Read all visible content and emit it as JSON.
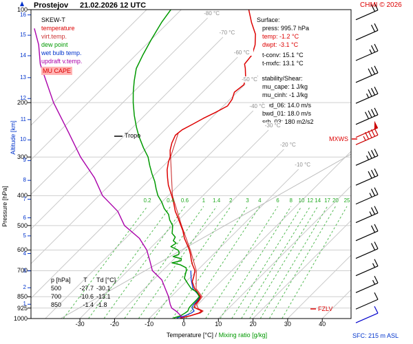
{
  "header": {
    "station": "Prostejov",
    "datetime": "21.02.2026 12 UTC",
    "copyright": "CHMI © 2026"
  },
  "legend": {
    "title": "SKEW-T",
    "items": [
      {
        "label": "temperature",
        "color": "#dd0000"
      },
      {
        "label": "virt.temp.",
        "color": "#cc3333"
      },
      {
        "label": "dew point",
        "color": "#009900"
      },
      {
        "label": "wet bulb temp.",
        "color": "#0033cc"
      },
      {
        "label": "updraft v.temp.",
        "color": "#aa00aa"
      },
      {
        "label": "MU CAPE",
        "color": "#dd0000",
        "highlight": "#ffb3b3"
      }
    ]
  },
  "panels": {
    "surface": {
      "title": "Surface:",
      "lines": [
        "press: 995.7 hPa",
        "temp: -1.2 °C",
        "dwpt: -3.1 °C",
        "t-conv: 15.1 °C",
        "t-mxfc: 13.1 °C"
      ]
    },
    "instability": {
      "title": "Instability/Shear:",
      "lines": [
        "mu_cape: 1 J/kg",
        "mu_cinh: -1 J/kg",
        "bwd_06: 14.0 m/s",
        "bwd_01: 18.0 m/s",
        "srh_03: 180 m2/s2"
      ]
    }
  },
  "table": {
    "header": {
      "p": "p [hPa]",
      "t": "T",
      "td": "Td [°C]"
    },
    "rows": [
      {
        "p": "500",
        "t": "-27.7",
        "td": "-30.1"
      },
      {
        "p": "700",
        "t": "-10.6",
        "td": "-13.1"
      },
      {
        "p": "850",
        "t": "-1.4",
        "td": "-1.8"
      }
    ]
  },
  "annotations": {
    "tropo": "Tropo",
    "mxws": "MXWS",
    "fzlv": "FZLV",
    "sfc": "SFC: 215 m ASL"
  },
  "axes": {
    "pressure_label": "Pressure [hPa]",
    "altitude_label": "Altitude [km]",
    "temp_axis_label": "Temperature [°C]",
    "separator": "/",
    "mixing_axis_label": "Mixing ratio [g/kg]",
    "altitude_ticks": [
      {
        "km": 1,
        "p": 899
      },
      {
        "km": 2,
        "p": 795
      },
      {
        "km": 3,
        "p": 701
      },
      {
        "km": 4,
        "p": 616
      },
      {
        "km": 5,
        "p": 540
      },
      {
        "km": 6,
        "p": 472
      },
      {
        "km": 7,
        "p": 411
      },
      {
        "km": 8,
        "p": 357
      },
      {
        "km": 9,
        "p": 308
      },
      {
        "km": 10,
        "p": 264
      },
      {
        "km": 11,
        "p": 227
      },
      {
        "km": 12,
        "p": 194
      },
      {
        "km": 13,
        "p": 166
      },
      {
        "km": 14,
        "p": 141
      },
      {
        "km": 15,
        "p": 121
      },
      {
        "km": 16,
        "p": 104
      }
    ],
    "isotherm_labels": [
      {
        "t": -10,
        "y": 240,
        "label": "-10 °C"
      },
      {
        "t": -20,
        "y": 211,
        "label": "-20 °C"
      },
      {
        "t": -30,
        "y": 183,
        "label": "-30 °C"
      },
      {
        "t": -40,
        "y": 155,
        "label": "-40 °C"
      },
      {
        "t": -50,
        "y": 116,
        "label": "-50 °C"
      },
      {
        "t": -60,
        "y": 77,
        "label": "-60 °C"
      },
      {
        "t": -70,
        "y": 48,
        "label": "-70 °C"
      },
      {
        "t": -80,
        "y": 20,
        "label": "-80 °C"
      }
    ]
  },
  "chart_data": {
    "type": "line",
    "title": "SKEW-T sounding, Prostejov, 21.02.2026 12 UTC",
    "x_axis": {
      "label": "Temperature [°C]",
      "ticks": [
        -30,
        -20,
        -10,
        0,
        10,
        20,
        30,
        40
      ],
      "skew_deg": 45
    },
    "y_axis": {
      "label": "Pressure [hPa]",
      "scale": "log",
      "range": [
        100,
        1000
      ],
      "ticks": [
        100,
        200,
        300,
        400,
        500,
        600,
        700,
        850,
        925,
        1000
      ]
    },
    "mixing_ratio_lines": [
      0.2,
      0.4,
      0.6,
      1,
      1.4,
      2,
      3,
      4,
      6,
      8,
      10,
      12,
      14,
      17,
      20,
      25
    ],
    "series": [
      {
        "name": "wet bulb temp.",
        "color": "#0033cc",
        "width": 1.2,
        "points": [
          [
            996,
            -2.2
          ],
          [
            980,
            -0.5
          ],
          [
            960,
            0.6
          ],
          [
            945,
            0.8
          ],
          [
            930,
            -0.3
          ],
          [
            920,
            -0.9
          ],
          [
            900,
            -1.2
          ],
          [
            870,
            -1.3
          ],
          [
            850,
            -1.6
          ],
          [
            800,
            -6.0
          ],
          [
            750,
            -9.0
          ],
          [
            700,
            -11.8
          ]
        ]
      },
      {
        "name": "virt.temp.",
        "color": "#cc3333",
        "width": 1.1,
        "points": [
          [
            996,
            -0.8
          ],
          [
            960,
            3.2
          ],
          [
            945,
            3.4
          ],
          [
            930,
            1.4
          ],
          [
            900,
            -0.4
          ],
          [
            850,
            -1.0
          ],
          [
            800,
            -5.1
          ],
          [
            700,
            -10.2
          ],
          [
            600,
            -17.9
          ],
          [
            500,
            -27.5
          ],
          [
            400,
            -38.8
          ],
          [
            300,
            -50.5
          ],
          [
            250,
            -55.3
          ]
        ]
      },
      {
        "name": "temperature",
        "color": "#dd0000",
        "width": 1.5,
        "points": [
          [
            996,
            -1.2
          ],
          [
            980,
            1.0
          ],
          [
            960,
            2.8
          ],
          [
            945,
            3.0
          ],
          [
            930,
            1.0
          ],
          [
            920,
            -0.2
          ],
          [
            900,
            -0.8
          ],
          [
            870,
            -1.0
          ],
          [
            850,
            -1.4
          ],
          [
            800,
            -5.5
          ],
          [
            760,
            -8.2
          ],
          [
            730,
            -9.3
          ],
          [
            700,
            -10.6
          ],
          [
            670,
            -13.0
          ],
          [
            650,
            -14.5
          ],
          [
            620,
            -16.6
          ],
          [
            600,
            -18.2
          ],
          [
            570,
            -21.0
          ],
          [
            550,
            -23.0
          ],
          [
            520,
            -25.6
          ],
          [
            500,
            -27.7
          ],
          [
            470,
            -31.0
          ],
          [
            450,
            -33.4
          ],
          [
            420,
            -36.6
          ],
          [
            400,
            -39.0
          ],
          [
            370,
            -43.0
          ],
          [
            350,
            -45.4
          ],
          [
            330,
            -47.8
          ],
          [
            310,
            -49.8
          ],
          [
            300,
            -50.6
          ],
          [
            285,
            -52.6
          ],
          [
            270,
            -54.2
          ],
          [
            255,
            -55.4
          ],
          [
            245,
            -55.0
          ],
          [
            235,
            -53.6
          ],
          [
            225,
            -52.2
          ],
          [
            215,
            -50.4
          ],
          [
            205,
            -48.8
          ],
          [
            195,
            -49.4
          ],
          [
            185,
            -50.8
          ],
          [
            175,
            -50.2
          ],
          [
            165,
            -52.0
          ],
          [
            155,
            -54.5
          ],
          [
            150,
            -56.0
          ],
          [
            140,
            -56.5
          ],
          [
            130,
            -58.5
          ],
          [
            120,
            -61.5
          ],
          [
            110,
            -66.0
          ],
          [
            100,
            -70.5
          ]
        ]
      },
      {
        "name": "dew point",
        "color": "#009900",
        "width": 1.5,
        "points": [
          [
            996,
            -3.1
          ],
          [
            980,
            -1.8
          ],
          [
            960,
            -1.2
          ],
          [
            945,
            -1.0
          ],
          [
            930,
            -1.4
          ],
          [
            920,
            -1.6
          ],
          [
            900,
            -1.7
          ],
          [
            870,
            -1.7
          ],
          [
            850,
            -1.8
          ],
          [
            820,
            -4.0
          ],
          [
            800,
            -6.5
          ],
          [
            770,
            -9.0
          ],
          [
            740,
            -11.5
          ],
          [
            700,
            -13.1
          ],
          [
            685,
            -14.0
          ],
          [
            670,
            -16.5
          ],
          [
            660,
            -19.5
          ],
          [
            650,
            -17.5
          ],
          [
            640,
            -18.0
          ],
          [
            630,
            -21.0
          ],
          [
            620,
            -20.0
          ],
          [
            610,
            -20.5
          ],
          [
            600,
            -21.5
          ],
          [
            585,
            -24.5
          ],
          [
            570,
            -24.0
          ],
          [
            560,
            -25.5
          ],
          [
            545,
            -26.0
          ],
          [
            530,
            -28.0
          ],
          [
            515,
            -29.0
          ],
          [
            500,
            -30.1
          ],
          [
            480,
            -32.5
          ],
          [
            460,
            -34.5
          ],
          [
            440,
            -37.5
          ],
          [
            420,
            -40.0
          ],
          [
            400,
            -43.0
          ],
          [
            380,
            -45.5
          ],
          [
            360,
            -48.0
          ],
          [
            340,
            -51.0
          ],
          [
            320,
            -54.0
          ],
          [
            300,
            -57.0
          ],
          [
            280,
            -61.0
          ],
          [
            260,
            -65.0
          ],
          [
            250,
            -67.0
          ],
          [
            240,
            -69.0
          ],
          [
            220,
            -73.0
          ],
          [
            200,
            -77.0
          ],
          [
            185,
            -80.0
          ],
          [
            170,
            -83.0
          ],
          [
            155,
            -86.0
          ],
          [
            140,
            -88.0
          ],
          [
            125,
            -90.0
          ],
          [
            110,
            -92.0
          ],
          [
            100,
            -93.0
          ]
        ]
      },
      {
        "name": "updraft v.temp.",
        "color": "#aa00aa",
        "width": 1.4,
        "points": [
          [
            996,
            -0.4
          ],
          [
            950,
            -4.0
          ],
          [
            925,
            -6.5
          ],
          [
            900,
            -8.0
          ],
          [
            850,
            -10.7
          ],
          [
            800,
            -14.0
          ],
          [
            750,
            -17.5
          ],
          [
            700,
            -22.9
          ],
          [
            650,
            -26.5
          ],
          [
            600,
            -30.5
          ],
          [
            550,
            -36.0
          ],
          [
            500,
            -44.0
          ],
          [
            450,
            -50.0
          ],
          [
            400,
            -59.0
          ],
          [
            350,
            -66.5
          ],
          [
            300,
            -76.5
          ],
          [
            250,
            -87.0
          ],
          [
            200,
            -100.0
          ],
          [
            150,
            -115.0
          ],
          [
            130,
            -121.0
          ],
          [
            115,
            -127.0
          ]
        ]
      }
    ],
    "wind_barbs": [
      {
        "p": 899,
        "kt": 10,
        "color": "#000000"
      },
      {
        "p": 795,
        "kt": 15,
        "color": "#000000"
      },
      {
        "p": 701,
        "kt": 15,
        "color": "#000000"
      },
      {
        "p": 616,
        "kt": 20,
        "color": "#000000"
      },
      {
        "p": 540,
        "kt": 20,
        "color": "#000000"
      },
      {
        "p": 472,
        "kt": 25,
        "color": "#000000"
      },
      {
        "p": 411,
        "kt": 25,
        "color": "#000000"
      },
      {
        "p": 357,
        "kt": 30,
        "color": "#000000"
      },
      {
        "p": 308,
        "kt": 35,
        "color": "#000000"
      },
      {
        "p": 264,
        "kt": 45,
        "color": "#cc0000"
      },
      {
        "p": 250,
        "kt": 50,
        "color": "#cc0000"
      },
      {
        "p": 227,
        "kt": 40,
        "color": "#000000"
      },
      {
        "p": 194,
        "kt": 35,
        "color": "#000000"
      },
      {
        "p": 166,
        "kt": 30,
        "color": "#000000"
      },
      {
        "p": 141,
        "kt": 25,
        "color": "#000000"
      },
      {
        "p": 121,
        "kt": 20,
        "color": "#000000"
      },
      {
        "p": 104,
        "kt": 20,
        "color": "#000000"
      },
      {
        "p": 996,
        "kt": 10,
        "color": "#0000cc"
      }
    ]
  }
}
